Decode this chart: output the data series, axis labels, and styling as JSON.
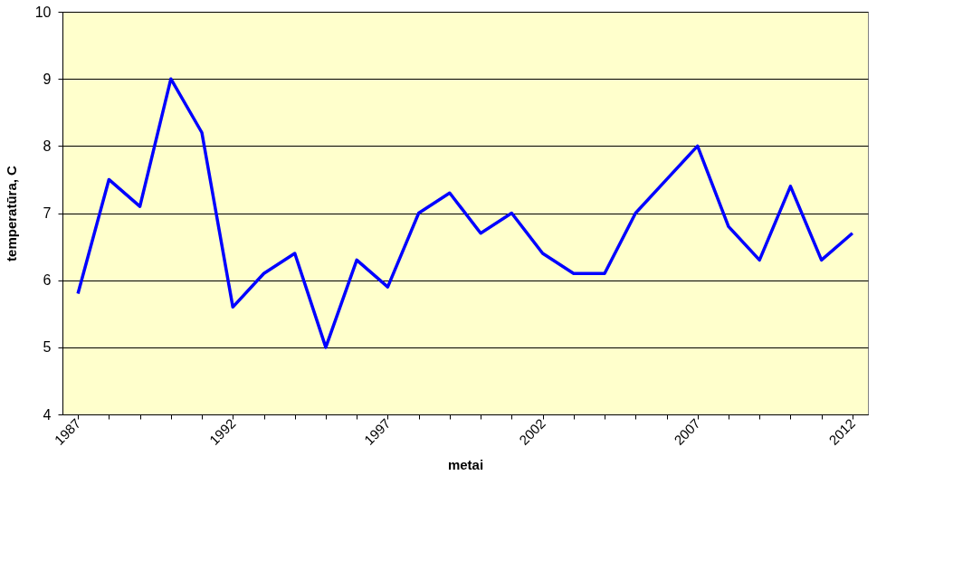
{
  "chart_data": {
    "type": "line",
    "xlabel": "metai",
    "ylabel": "temperatūra, C",
    "categories": [
      "1987",
      null,
      null,
      null,
      null,
      "1992",
      null,
      null,
      null,
      null,
      "1997",
      null,
      null,
      null,
      null,
      "2002",
      null,
      null,
      null,
      null,
      "2007",
      null,
      null,
      null,
      null,
      "2012"
    ],
    "series": [
      {
        "color": "#0000ff",
        "values": [
          5.8,
          7.5,
          7.1,
          9.0,
          8.2,
          5.6,
          6.1,
          6.4,
          5.0,
          6.3,
          5.9,
          7.0,
          7.3,
          6.7,
          7.0,
          6.4,
          6.1,
          6.1,
          7.0,
          7.5,
          8.0,
          6.8,
          6.3,
          7.4,
          6.3,
          6.7
        ]
      }
    ],
    "ylim": [
      4,
      10
    ],
    "yticks": [
      4,
      5,
      6,
      7,
      8,
      9,
      10
    ],
    "grid": "y",
    "marker": "none",
    "line_style": "solid"
  }
}
